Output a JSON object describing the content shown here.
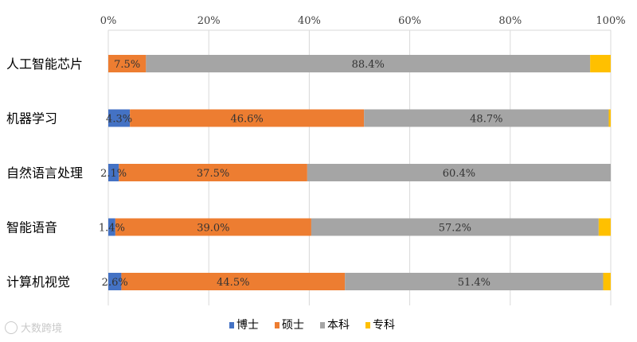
{
  "watermark": {
    "text": "大数跨境"
  },
  "chart_data": {
    "type": "bar",
    "orientation": "horizontal",
    "stacked": "percent",
    "categories": [
      "人工智能芯片",
      "机器学习",
      "自然语言处理",
      "智能语音",
      "计算机视觉"
    ],
    "xlim": [
      0,
      100
    ],
    "x_ticks": [
      "0%",
      "20%",
      "40%",
      "60%",
      "80%",
      "100%"
    ],
    "grid": true,
    "legend_position": "bottom",
    "series": [
      {
        "name": "博士",
        "color": "#4472C4",
        "values": [
          0.0,
          4.3,
          2.1,
          1.4,
          2.6
        ]
      },
      {
        "name": "硕士",
        "color": "#ED7D31",
        "values": [
          7.5,
          46.6,
          37.5,
          39.0,
          44.5
        ]
      },
      {
        "name": "本科",
        "color": "#A5A5A5",
        "values": [
          88.4,
          48.7,
          60.4,
          57.2,
          51.4
        ]
      },
      {
        "name": "专科",
        "color": "#FFC000",
        "values": [
          4.1,
          0.4,
          0.0,
          2.4,
          1.5
        ]
      }
    ],
    "data_labels": [
      {
        "cat": 0,
        "series": 1,
        "text": "7.5%"
      },
      {
        "cat": 0,
        "series": 2,
        "text": "88.4%"
      },
      {
        "cat": 1,
        "series": 0,
        "text": "4.3%"
      },
      {
        "cat": 1,
        "series": 1,
        "text": "46.6%"
      },
      {
        "cat": 1,
        "series": 2,
        "text": "48.7%"
      },
      {
        "cat": 2,
        "series": 0,
        "text": "2.1%"
      },
      {
        "cat": 2,
        "series": 1,
        "text": "37.5%"
      },
      {
        "cat": 2,
        "series": 2,
        "text": "60.4%"
      },
      {
        "cat": 3,
        "series": 0,
        "text": "1.4%"
      },
      {
        "cat": 3,
        "series": 1,
        "text": "39.0%"
      },
      {
        "cat": 3,
        "series": 2,
        "text": "57.2%"
      },
      {
        "cat": 4,
        "series": 0,
        "text": "2.6%"
      },
      {
        "cat": 4,
        "series": 1,
        "text": "44.5%"
      },
      {
        "cat": 4,
        "series": 2,
        "text": "51.4%"
      }
    ]
  }
}
